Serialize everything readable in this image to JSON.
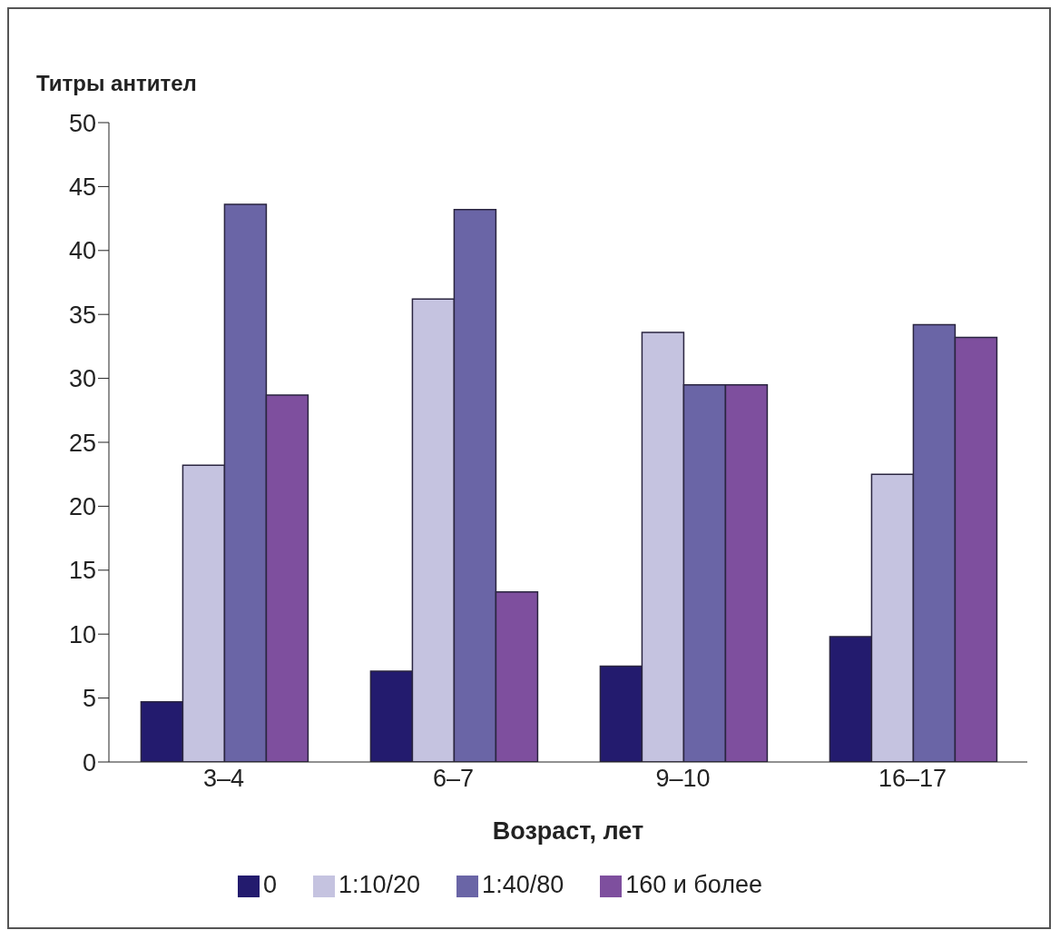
{
  "chart_data": {
    "type": "bar",
    "title": "Титры антител",
    "xlabel": "Возраст, лет",
    "categories": [
      "3–4",
      "6–7",
      "9–10",
      "16–17"
    ],
    "series": [
      {
        "name": "0",
        "color": "#231b6e",
        "values": [
          4.7,
          7.1,
          7.5,
          9.8
        ]
      },
      {
        "name": "1:10/20",
        "color": "#c5c3e0",
        "values": [
          23.2,
          36.2,
          33.6,
          22.5
        ]
      },
      {
        "name": "1:40/80",
        "color": "#6a65a6",
        "values": [
          43.6,
          43.2,
          29.5,
          34.2
        ]
      },
      {
        "name": "160 и более",
        "color": "#7e4f9e",
        "values": [
          28.7,
          13.3,
          29.5,
          33.2
        ]
      }
    ],
    "ylim": [
      0,
      50
    ],
    "yticks": [
      0,
      5,
      10,
      15,
      20,
      25,
      30,
      35,
      40,
      45,
      50
    ],
    "grid": false,
    "legend": "bottom"
  }
}
